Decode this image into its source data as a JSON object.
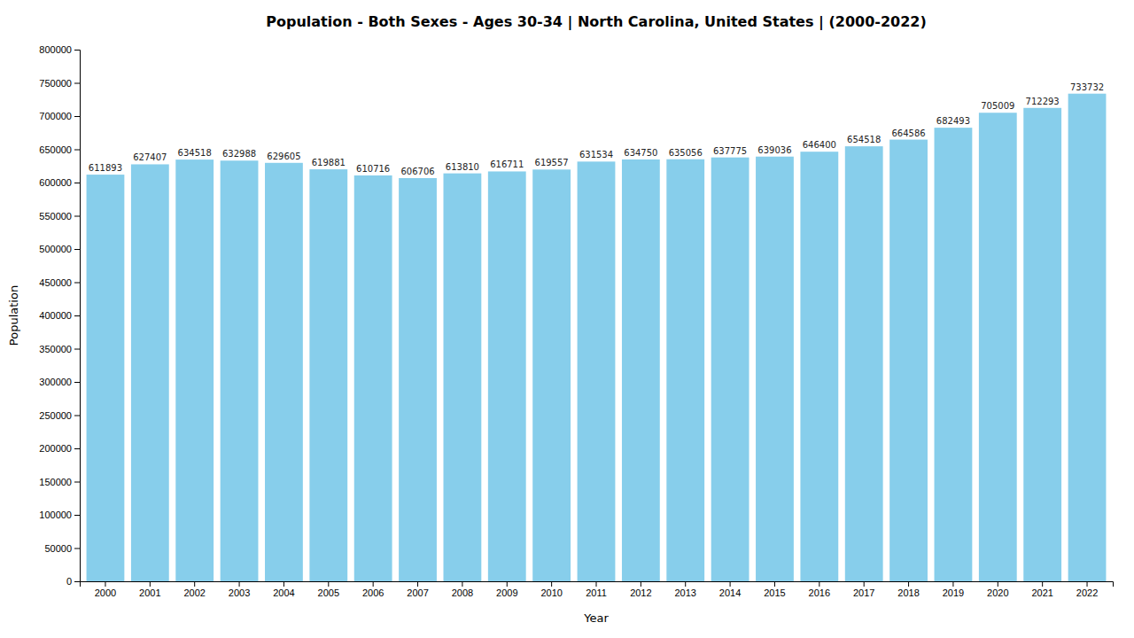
{
  "chart_data": {
    "type": "bar",
    "title": "Population - Both Sexes - Ages 30-34 | North Carolina, United States |  (2000-2022)",
    "xlabel": "Year",
    "ylabel": "Population",
    "categories": [
      "2000",
      "2001",
      "2002",
      "2003",
      "2004",
      "2005",
      "2006",
      "2007",
      "2008",
      "2009",
      "2010",
      "2011",
      "2012",
      "2013",
      "2014",
      "2015",
      "2016",
      "2017",
      "2018",
      "2019",
      "2020",
      "2021",
      "2022"
    ],
    "values": [
      611893,
      627407,
      634518,
      632988,
      629605,
      619881,
      610716,
      606706,
      613810,
      616711,
      619557,
      631534,
      634750,
      635056,
      637775,
      639036,
      646400,
      654518,
      664586,
      682493,
      705009,
      712293,
      733732
    ],
    "color": "#87CEEB",
    "ylim": [
      0,
      800000
    ],
    "yticks": [
      0,
      50000,
      100000,
      150000,
      200000,
      250000,
      300000,
      350000,
      400000,
      450000,
      500000,
      550000,
      600000,
      650000,
      700000,
      750000,
      800000
    ],
    "grid": false,
    "data_labels": true
  }
}
